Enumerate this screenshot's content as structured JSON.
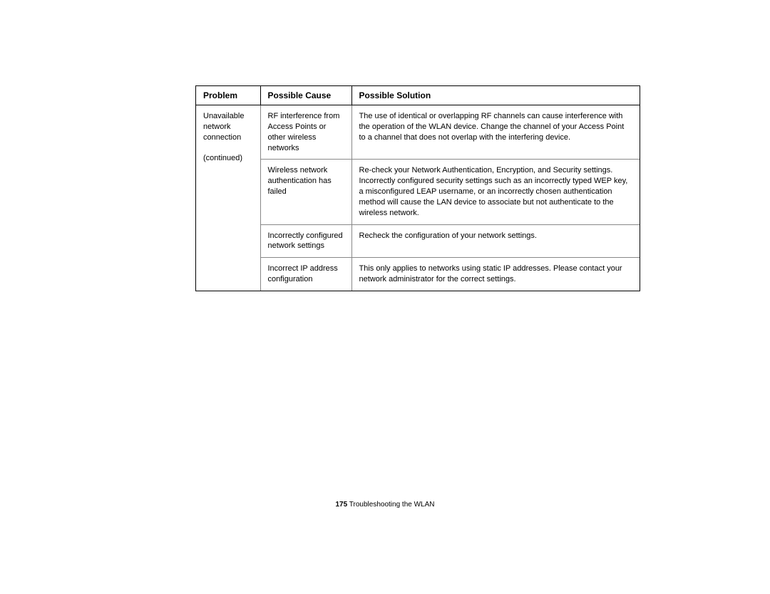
{
  "table": {
    "headers": {
      "problem": "Problem",
      "cause": "Possible Cause",
      "solution": "Possible Solution"
    },
    "problem": {
      "text": "Unavailable network connection",
      "continued": "(continued)"
    },
    "rows": [
      {
        "cause": "RF interference from Access Points or other wireless networks",
        "solution": "The use of identical or overlapping RF channels can cause interference with the operation of the WLAN device. Change the channel of your Access Point to a channel that does not overlap with the interfering device."
      },
      {
        "cause": "Wireless network authentication has failed",
        "solution": "Re-check your Network Authentication, Encryption, and Security settings. Incorrectly configured security settings such as an incorrectly typed WEP key, a misconfigured LEAP username, or an incorrectly chosen authentication method will cause the LAN device to associate but not authenticate to the wireless network."
      },
      {
        "cause": "Incorrectly configured network settings",
        "solution": "Recheck the configuration of your network settings."
      },
      {
        "cause": "Incorrect IP address configuration",
        "solution": "This only applies to networks using static IP addresses. Please contact your network administrator for the correct settings."
      }
    ]
  },
  "footer": {
    "pageNumber": "175",
    "sectionTitle": "Troubleshooting the WLAN"
  }
}
